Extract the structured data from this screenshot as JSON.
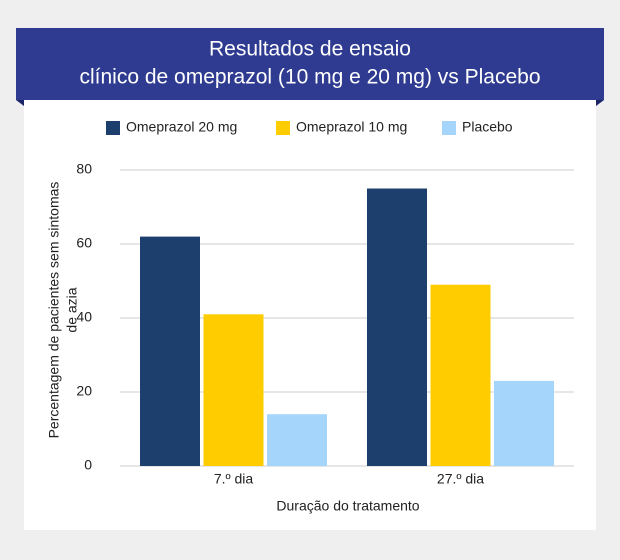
{
  "chart_data": {
    "type": "bar",
    "title": [
      "Resultados de ensaio",
      "clínico de omeprazol (10 mg e 20 mg) vs Placebo"
    ],
    "x_label": "Duração do tratamento",
    "y_label": [
      "Percentagem de pacientes sem sintomas",
      "de azia"
    ],
    "categories": [
      "7.º dia",
      "27.º dia"
    ],
    "series": [
      {
        "name": "Omeprazol 20 mg",
        "color": "#1c3f6e",
        "values": [
          62,
          75
        ]
      },
      {
        "name": "Omeprazol 10 mg",
        "color": "#ffcc00",
        "values": [
          41,
          49
        ]
      },
      {
        "name": "Placebo",
        "color": "#a6d5fb",
        "values": [
          14,
          23
        ]
      }
    ],
    "ylim": [
      0,
      80
    ],
    "yticks": [
      0,
      20,
      40,
      60,
      80
    ],
    "grid": true
  }
}
